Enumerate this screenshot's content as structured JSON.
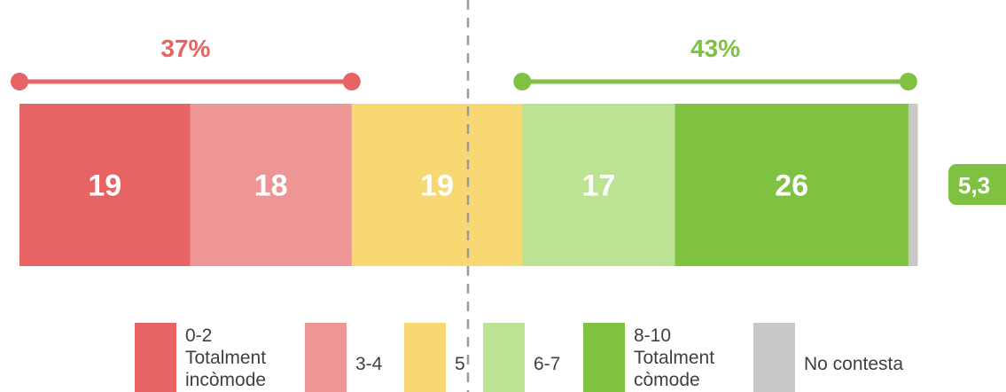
{
  "chart_data": {
    "type": "bar",
    "orientation": "horizontal-stacked-100",
    "categories": [
      "0-2 Totalment incòmode",
      "3-4",
      "5",
      "6-7",
      "8-10 Totalment còmode",
      "No contesta"
    ],
    "series": [
      {
        "values": [
          19,
          18,
          19,
          17,
          26,
          1
        ]
      }
    ],
    "segment_labels": [
      "19",
      "18",
      "19",
      "17",
      "26",
      ""
    ],
    "groups": [
      {
        "label": "37%",
        "value": 37,
        "from_segment": 0,
        "to_segment": 1,
        "color": "#e86363"
      },
      {
        "label": "43%",
        "value": 43,
        "from_segment": 3,
        "to_segment": 4,
        "color": "#7fc241"
      }
    ],
    "mean": {
      "label": "5,3",
      "value": 5.3,
      "color": "#7fc241"
    },
    "legend": [
      {
        "lines": [
          "0-2",
          "Totalment",
          "incòmode"
        ],
        "color": "#e86363"
      },
      {
        "lines": [
          "3-4"
        ],
        "color": "#ee9696"
      },
      {
        "lines": [
          "5"
        ],
        "color": "#f7d873"
      },
      {
        "lines": [
          "6-7"
        ],
        "color": "#bce394"
      },
      {
        "lines": [
          "8-10",
          "Totalment",
          "còmode"
        ],
        "color": "#7fc241"
      },
      {
        "lines": [
          "No contesta"
        ],
        "color": "#c8c8c8"
      }
    ],
    "colors": [
      "#e86363",
      "#ee9696",
      "#f7d873",
      "#bce394",
      "#7fc241",
      "#c8c8c8"
    ],
    "legend_position": "bottom",
    "grid": false
  }
}
